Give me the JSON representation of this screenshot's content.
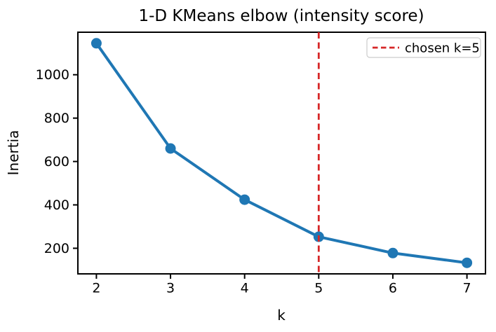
{
  "figure": {
    "background": "#ffffff"
  },
  "chart_data": {
    "type": "line",
    "title": "1-D KMeans elbow (intensity score)",
    "xlabel": "k",
    "ylabel": "Inertia",
    "x": [
      2,
      3,
      4,
      5,
      6,
      7
    ],
    "series": [
      {
        "name": "inertia",
        "values": [
          1145,
          660,
          424,
          253,
          178,
          133
        ],
        "color": "#1f77b4",
        "marker": "circle",
        "line_style": "solid"
      }
    ],
    "xticks": [
      2,
      3,
      4,
      5,
      6,
      7
    ],
    "yticks": [
      200,
      400,
      600,
      800,
      1000
    ],
    "xlim": [
      1.75,
      7.25
    ],
    "ylim": [
      82,
      1196
    ],
    "grid": false,
    "vline": {
      "x": 5,
      "color": "#d62728",
      "style": "dashed",
      "label": "chosen k=5"
    },
    "legend": {
      "position": "upper right",
      "frame_color": "#cccccc",
      "entries": [
        {
          "label": "chosen k=5",
          "color": "#d62728",
          "style": "dashed"
        }
      ]
    },
    "colors": {
      "line": "#1f77b4",
      "vline": "#d62728",
      "text": "#000000",
      "spine": "#000000"
    }
  }
}
